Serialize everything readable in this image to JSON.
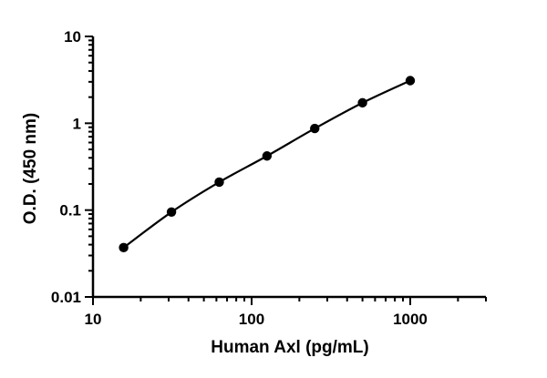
{
  "chart_data": {
    "type": "scatter",
    "xlabel": "Human Axl (pg/mL)",
    "ylabel": "O.D. (450 nm)",
    "x_scale": "log",
    "y_scale": "log",
    "xlim": [
      10,
      3000
    ],
    "ylim": [
      0.01,
      10
    ],
    "x_ticks": [
      {
        "value": 10,
        "label": "10"
      },
      {
        "value": 100,
        "label": "100"
      },
      {
        "value": 1000,
        "label": "1000"
      }
    ],
    "y_ticks": [
      {
        "value": 0.01,
        "label": "0.01"
      },
      {
        "value": 0.1,
        "label": "0.1"
      },
      {
        "value": 1,
        "label": "1"
      },
      {
        "value": 10,
        "label": "10"
      }
    ],
    "grid": false,
    "fit_curve": true,
    "series": [
      {
        "x": [
          15.6,
          31.25,
          62.5,
          125,
          250,
          500,
          1000
        ],
        "y": [
          0.037,
          0.095,
          0.21,
          0.42,
          0.87,
          1.72,
          3.1
        ]
      }
    ],
    "colors": {
      "marker": "#000000",
      "line": "#000000"
    }
  }
}
